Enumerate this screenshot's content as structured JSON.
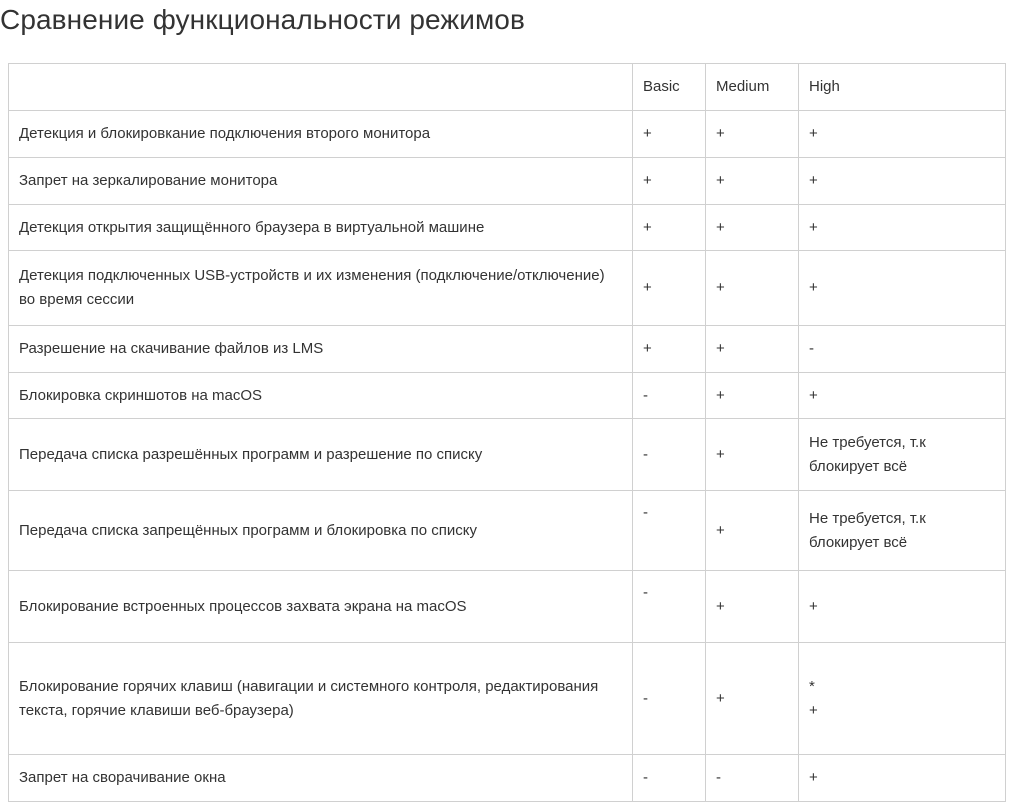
{
  "title": "Сравнение функциональности режимов",
  "table": {
    "headers": [
      "",
      "Basic",
      "Medium",
      "High"
    ],
    "rows": [
      {
        "feature": "Детекция и блокировкание подключения второго монитора",
        "basic": "+",
        "medium": "+",
        "high": "+"
      },
      {
        "feature": "Запрет на зеркалирование монитора",
        "basic": "+",
        "medium": "+",
        "high": "+"
      },
      {
        "feature": "Детекция открытия защищённого браузера в виртуальной машине",
        "basic": "+",
        "medium": "+",
        "high": "+"
      },
      {
        "feature": "Детекция подключенных USB-устройств и их изменения (подключение/отключение) во время сессии",
        "basic": "+",
        "medium": "+",
        "high": "+"
      },
      {
        "feature": "Разрешение на скачивание файлов из LMS",
        "basic": "+",
        "medium": "+",
        "high": "-"
      },
      {
        "feature": "Блокировка скриншотов на macOS",
        "basic": "-",
        "medium": "+",
        "high": "+"
      },
      {
        "feature": "Передача списка разрешённых программ и разрешение по списку",
        "basic": "-",
        "medium": "+",
        "high": "Не требуется, т.к блокирует всё"
      },
      {
        "feature": "Передача списка запрещённых программ и блокировка по списку",
        "basic": "-",
        "medium": "+",
        "high": "Не требуется, т.к блокирует всё"
      },
      {
        "feature": "Блокирование встроенных процессов захвата экрана на macOS",
        "basic": "-",
        "medium": "+",
        "high": "+"
      },
      {
        "feature": "Блокирование горячих клавиш (навигации и системного контроля, редактирования текста, горячие клавиши веб-браузера)",
        "basic": "-",
        "medium": "+",
        "high": "*\n+"
      },
      {
        "feature": "Запрет на сворачивание окна",
        "basic": "-",
        "medium": "-",
        "high": "+"
      }
    ]
  }
}
